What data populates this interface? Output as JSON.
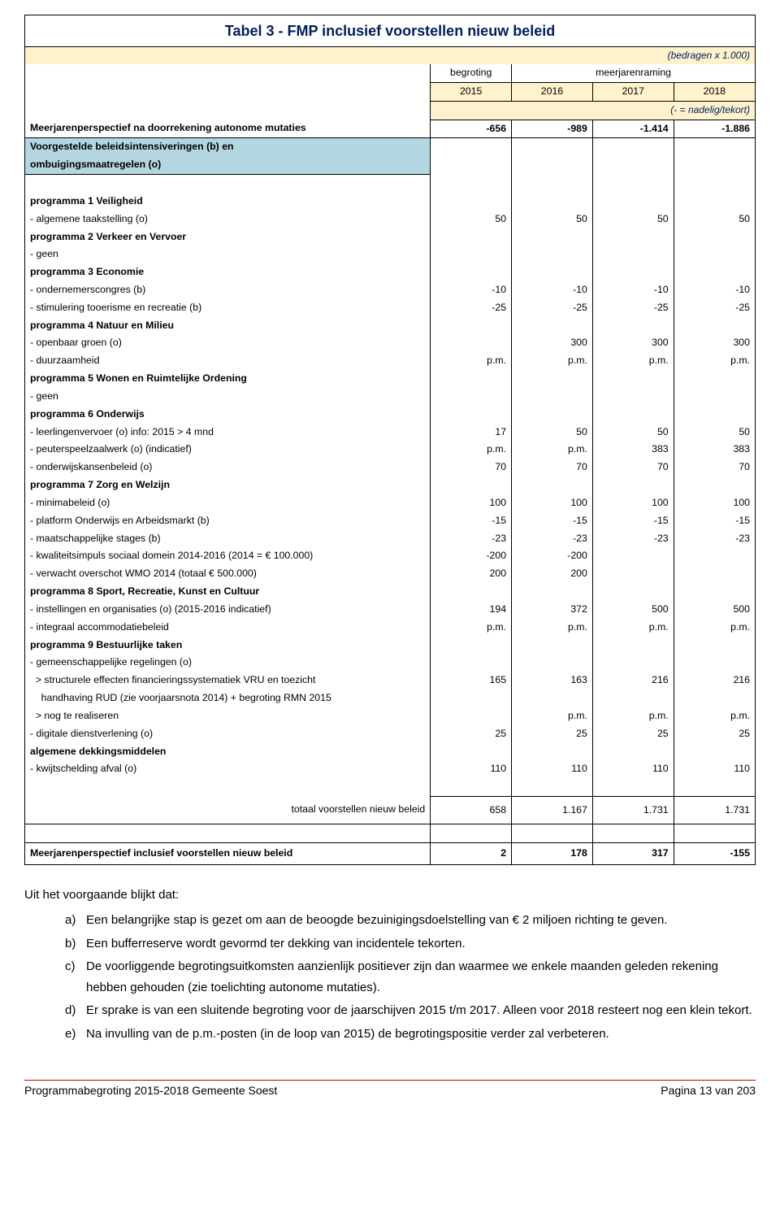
{
  "title": "Tabel 3 - FMP inclusief voorstellen nieuw beleid",
  "unit_note": "(bedragen x 1.000)",
  "header_begroting": "begroting",
  "header_meerjaren": "meerjarenraming",
  "years": [
    "2015",
    "2016",
    "2017",
    "2018"
  ],
  "deficit_note": "(- = nadelig/tekort)",
  "row_autonome": {
    "label": "Meerjarenperspectief na doorrekening autonome mutaties",
    "v": [
      "-656",
      "-989",
      "-1.414",
      "-1.886"
    ]
  },
  "blue_line1": "Voorgestelde beleidsintensiveringen (b) en",
  "blue_line2": "ombuigingsmaatregelen (o)",
  "rows": [
    {
      "label": "programma 1 Veiligheid",
      "bold": true,
      "v": [
        "",
        "",
        "",
        ""
      ]
    },
    {
      "label": "- algemene taakstelling (o)",
      "v": [
        "50",
        "50",
        "50",
        "50"
      ]
    },
    {
      "label": "programma 2 Verkeer en Vervoer",
      "bold": true,
      "v": [
        "",
        "",
        "",
        ""
      ]
    },
    {
      "label": "- geen",
      "v": [
        "",
        "",
        "",
        ""
      ]
    },
    {
      "label": "programma 3 Economie",
      "bold": true,
      "v": [
        "",
        "",
        "",
        ""
      ]
    },
    {
      "label": "- ondernemerscongres (b)",
      "v": [
        "-10",
        "-10",
        "-10",
        "-10"
      ]
    },
    {
      "label": "- stimulering tooerisme en recreatie (b)",
      "v": [
        "-25",
        "-25",
        "-25",
        "-25"
      ]
    },
    {
      "label": "programma 4 Natuur en Milieu",
      "bold": true,
      "v": [
        "",
        "",
        "",
        ""
      ]
    },
    {
      "label": "- openbaar groen (o)",
      "v": [
        "",
        "300",
        "300",
        "300"
      ]
    },
    {
      "label": "- duurzaamheid",
      "v": [
        "p.m.",
        "p.m.",
        "p.m.",
        "p.m."
      ]
    },
    {
      "label": "programma 5 Wonen en Ruimtelijke Ordening",
      "bold": true,
      "v": [
        "",
        "",
        "",
        ""
      ]
    },
    {
      "label": "- geen",
      "v": [
        "",
        "",
        "",
        ""
      ]
    },
    {
      "label": "programma 6 Onderwijs",
      "bold": true,
      "v": [
        "",
        "",
        "",
        ""
      ]
    },
    {
      "label": "- leerlingenvervoer (o) info: 2015 > 4 mnd",
      "v": [
        "17",
        "50",
        "50",
        "50"
      ]
    },
    {
      "label": "- peuterspeelzaalwerk (o) (indicatief)",
      "v": [
        "p.m.",
        "p.m.",
        "383",
        "383"
      ]
    },
    {
      "label": "- onderwijskansenbeleid (o)",
      "v": [
        "70",
        "70",
        "70",
        "70"
      ]
    },
    {
      "label": "programma 7 Zorg en Welzijn",
      "bold": true,
      "v": [
        "",
        "",
        "",
        ""
      ]
    },
    {
      "label": "- minimabeleid (o)",
      "v": [
        "100",
        "100",
        "100",
        "100"
      ]
    },
    {
      "label": "- platform Onderwijs en Arbeidsmarkt (b)",
      "v": [
        "-15",
        "-15",
        "-15",
        "-15"
      ]
    },
    {
      "label": "- maatschappelijke stages (b)",
      "v": [
        "-23",
        "-23",
        "-23",
        "-23"
      ]
    },
    {
      "label": "- kwaliteitsimpuls sociaal domein 2014-2016 (2014 = € 100.000)",
      "v": [
        "-200",
        "-200",
        "",
        ""
      ]
    },
    {
      "label": "- verwacht overschot WMO 2014 (totaal € 500.000)",
      "v": [
        "200",
        "200",
        "",
        ""
      ]
    },
    {
      "label": "programma 8 Sport, Recreatie, Kunst en Cultuur",
      "bold": true,
      "v": [
        "",
        "",
        "",
        ""
      ]
    },
    {
      "label": "- instellingen en organisaties (o) (2015-2016 indicatief)",
      "v": [
        "194",
        "372",
        "500",
        "500"
      ]
    },
    {
      "label": "- integraal accommodatiebeleid",
      "v": [
        "p.m.",
        "p.m.",
        "p.m.",
        "p.m."
      ]
    },
    {
      "label": "programma 9 Bestuurlijke taken",
      "bold": true,
      "v": [
        "",
        "",
        "",
        ""
      ]
    },
    {
      "label": "- gemeenschappelijke regelingen (o)",
      "v": [
        "",
        "",
        "",
        ""
      ]
    },
    {
      "label": "  > structurele effecten financieringssystematiek VRU en toezicht",
      "v": [
        "165",
        "163",
        "216",
        "216"
      ]
    },
    {
      "label": "    handhaving RUD (zie voorjaarsnota 2014) + begroting RMN 2015",
      "v": [
        "",
        "",
        "",
        ""
      ]
    },
    {
      "label": "  > nog te realiseren",
      "v": [
        "",
        "p.m.",
        "p.m.",
        "p.m."
      ]
    },
    {
      "label": "- digitale dienstverlening (o)",
      "v": [
        "25",
        "25",
        "25",
        "25"
      ]
    },
    {
      "label": "algemene dekkingsmiddelen",
      "bold": true,
      "v": [
        "",
        "",
        "",
        ""
      ]
    },
    {
      "label": "- kwijtschelding afval (o)",
      "v": [
        "110",
        "110",
        "110",
        "110"
      ]
    }
  ],
  "totals": {
    "label": "totaal voorstellen nieuw beleid",
    "v": [
      "658",
      "1.167",
      "1.731",
      "1.731"
    ]
  },
  "final": {
    "label": "Meerjarenperspectief inclusief voorstellen nieuw beleid",
    "v": [
      "2",
      "178",
      "317",
      "-155"
    ]
  },
  "body_intro": "Uit het voorgaande blijkt dat:",
  "body_items": [
    {
      "m": "a)",
      "t": "Een belangrijke stap is gezet om aan de beoogde bezuinigingsdoelstelling van € 2 miljoen richting te geven."
    },
    {
      "m": "b)",
      "t": "Een bufferreserve wordt gevormd ter dekking van incidentele tekorten."
    },
    {
      "m": "c)",
      "t": "De voorliggende begrotingsuitkomsten aanzienlijk positiever zijn dan waarmee we enkele maanden geleden rekening hebben gehouden (zie toelichting autonome mutaties)."
    },
    {
      "m": "d)",
      "t": "Er sprake is van een sluitende begroting voor de jaarschijven 2015 t/m 2017. Alleen voor 2018 resteert nog een klein tekort."
    },
    {
      "m": "e)",
      "t": "Na invulling van de p.m.-posten (in de loop van 2015) de begrotingspositie verder zal verbeteren."
    }
  ],
  "footer_left": "Programmabegroting 2015-2018 Gemeente Soest",
  "footer_right": "Pagina 13 van 203",
  "colors": {
    "title_color": "#002060",
    "note_color": "#002060",
    "yellow": "#fff2cc",
    "blue_highlight": "#b4d6e0",
    "footer_rule": "#c00000"
  }
}
